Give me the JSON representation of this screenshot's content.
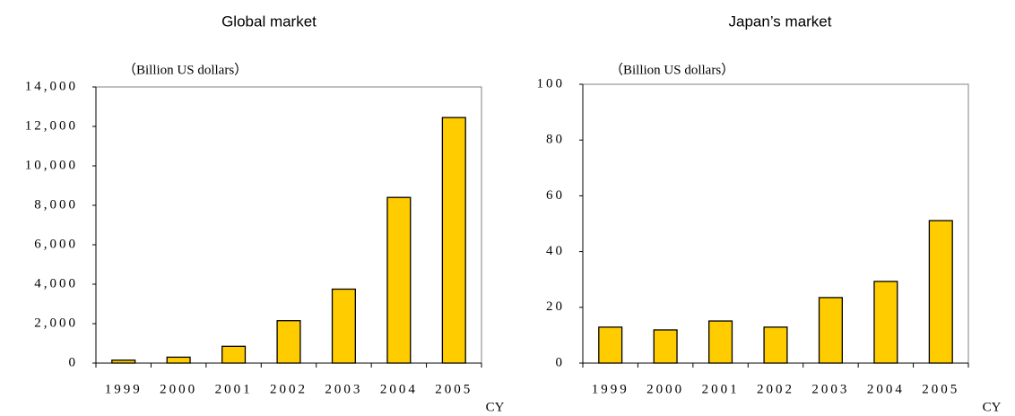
{
  "chart_data": [
    {
      "type": "bar",
      "title": "Global market",
      "y_label": "（Billion US dollars）",
      "x_label": "CY",
      "categories": [
        "1999",
        "2000",
        "2001",
        "2002",
        "2003",
        "2004",
        "2005"
      ],
      "values": [
        150,
        300,
        850,
        2150,
        3750,
        8400,
        12450
      ],
      "color": "#ffcc00",
      "ylim": [
        0,
        14000
      ],
      "yticks": [
        0,
        {
          "value": 2000,
          "label": "2,000"
        },
        {
          "value": 4000,
          "label": "4,000"
        },
        {
          "value": 6000,
          "label": "6,000"
        },
        {
          "value": 8000,
          "label": "8,000"
        },
        {
          "value": 10000,
          "label": "10,000"
        },
        {
          "value": 12000,
          "label": "12,000"
        },
        {
          "value": 14000,
          "label": "14,000"
        }
      ],
      "grid": false
    },
    {
      "type": "bar",
      "title": "Japan’s market",
      "y_label": "（Billion US dollars）",
      "x_label": "CY",
      "categories": [
        "1999",
        "2000",
        "2001",
        "2002",
        "2003",
        "2004",
        "2005"
      ],
      "values": [
        12.9,
        11.9,
        15.1,
        12.9,
        23.5,
        29.3,
        51.1
      ],
      "color": "#ffcc00",
      "ylim": [
        0,
        100
      ],
      "yticks": [
        0,
        20,
        40,
        60,
        80,
        100
      ],
      "grid": false
    }
  ]
}
